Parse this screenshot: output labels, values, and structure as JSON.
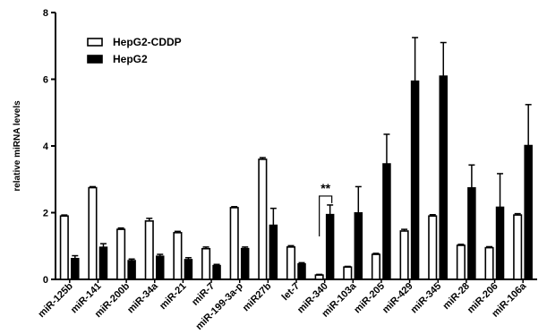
{
  "chart_data": {
    "type": "bar",
    "title": "",
    "xlabel": "",
    "ylabel": "relative miRNA levels",
    "ylim": [
      0,
      8
    ],
    "yticks": [
      0,
      2,
      4,
      6,
      8
    ],
    "grid": false,
    "legend_position": "top-left",
    "categories": [
      "miR-125b",
      "miR-141",
      "miR-200b",
      "miR-34a",
      "miR-21",
      "miR-7",
      "miR-199-3a-p",
      "miR27b",
      "let-7",
      "miR-340",
      "miR-103a",
      "miR-205",
      "miR-429",
      "miR-345",
      "miR-28",
      "miR-206",
      "miR-106a"
    ],
    "series": [
      {
        "name": "HepG2-CDDP",
        "fill": "#ffffff",
        "values": [
          1.9,
          2.75,
          1.5,
          1.75,
          1.4,
          0.92,
          2.15,
          3.6,
          0.97,
          0.13,
          0.37,
          0.75,
          1.45,
          1.9,
          1.02,
          0.95,
          1.93
        ],
        "errors": [
          0.03,
          0.03,
          0.04,
          0.08,
          0.04,
          0.05,
          0.03,
          0.05,
          0.04,
          0.02,
          0.02,
          0.03,
          0.05,
          0.04,
          0.03,
          0.03,
          0.04
        ]
      },
      {
        "name": "HepG2",
        "fill": "#000000",
        "values": [
          0.63,
          0.97,
          0.57,
          0.7,
          0.6,
          0.42,
          0.93,
          1.63,
          0.47,
          1.95,
          2.0,
          3.47,
          5.95,
          6.1,
          2.75,
          2.17,
          4.02
        ],
        "errors": [
          0.08,
          0.1,
          0.04,
          0.05,
          0.05,
          0.03,
          0.04,
          0.5,
          0.03,
          0.28,
          0.78,
          0.88,
          1.3,
          1.0,
          0.68,
          1.0,
          1.22
        ]
      }
    ],
    "annotations": [
      {
        "text": "**",
        "category": "miR-340"
      }
    ]
  }
}
